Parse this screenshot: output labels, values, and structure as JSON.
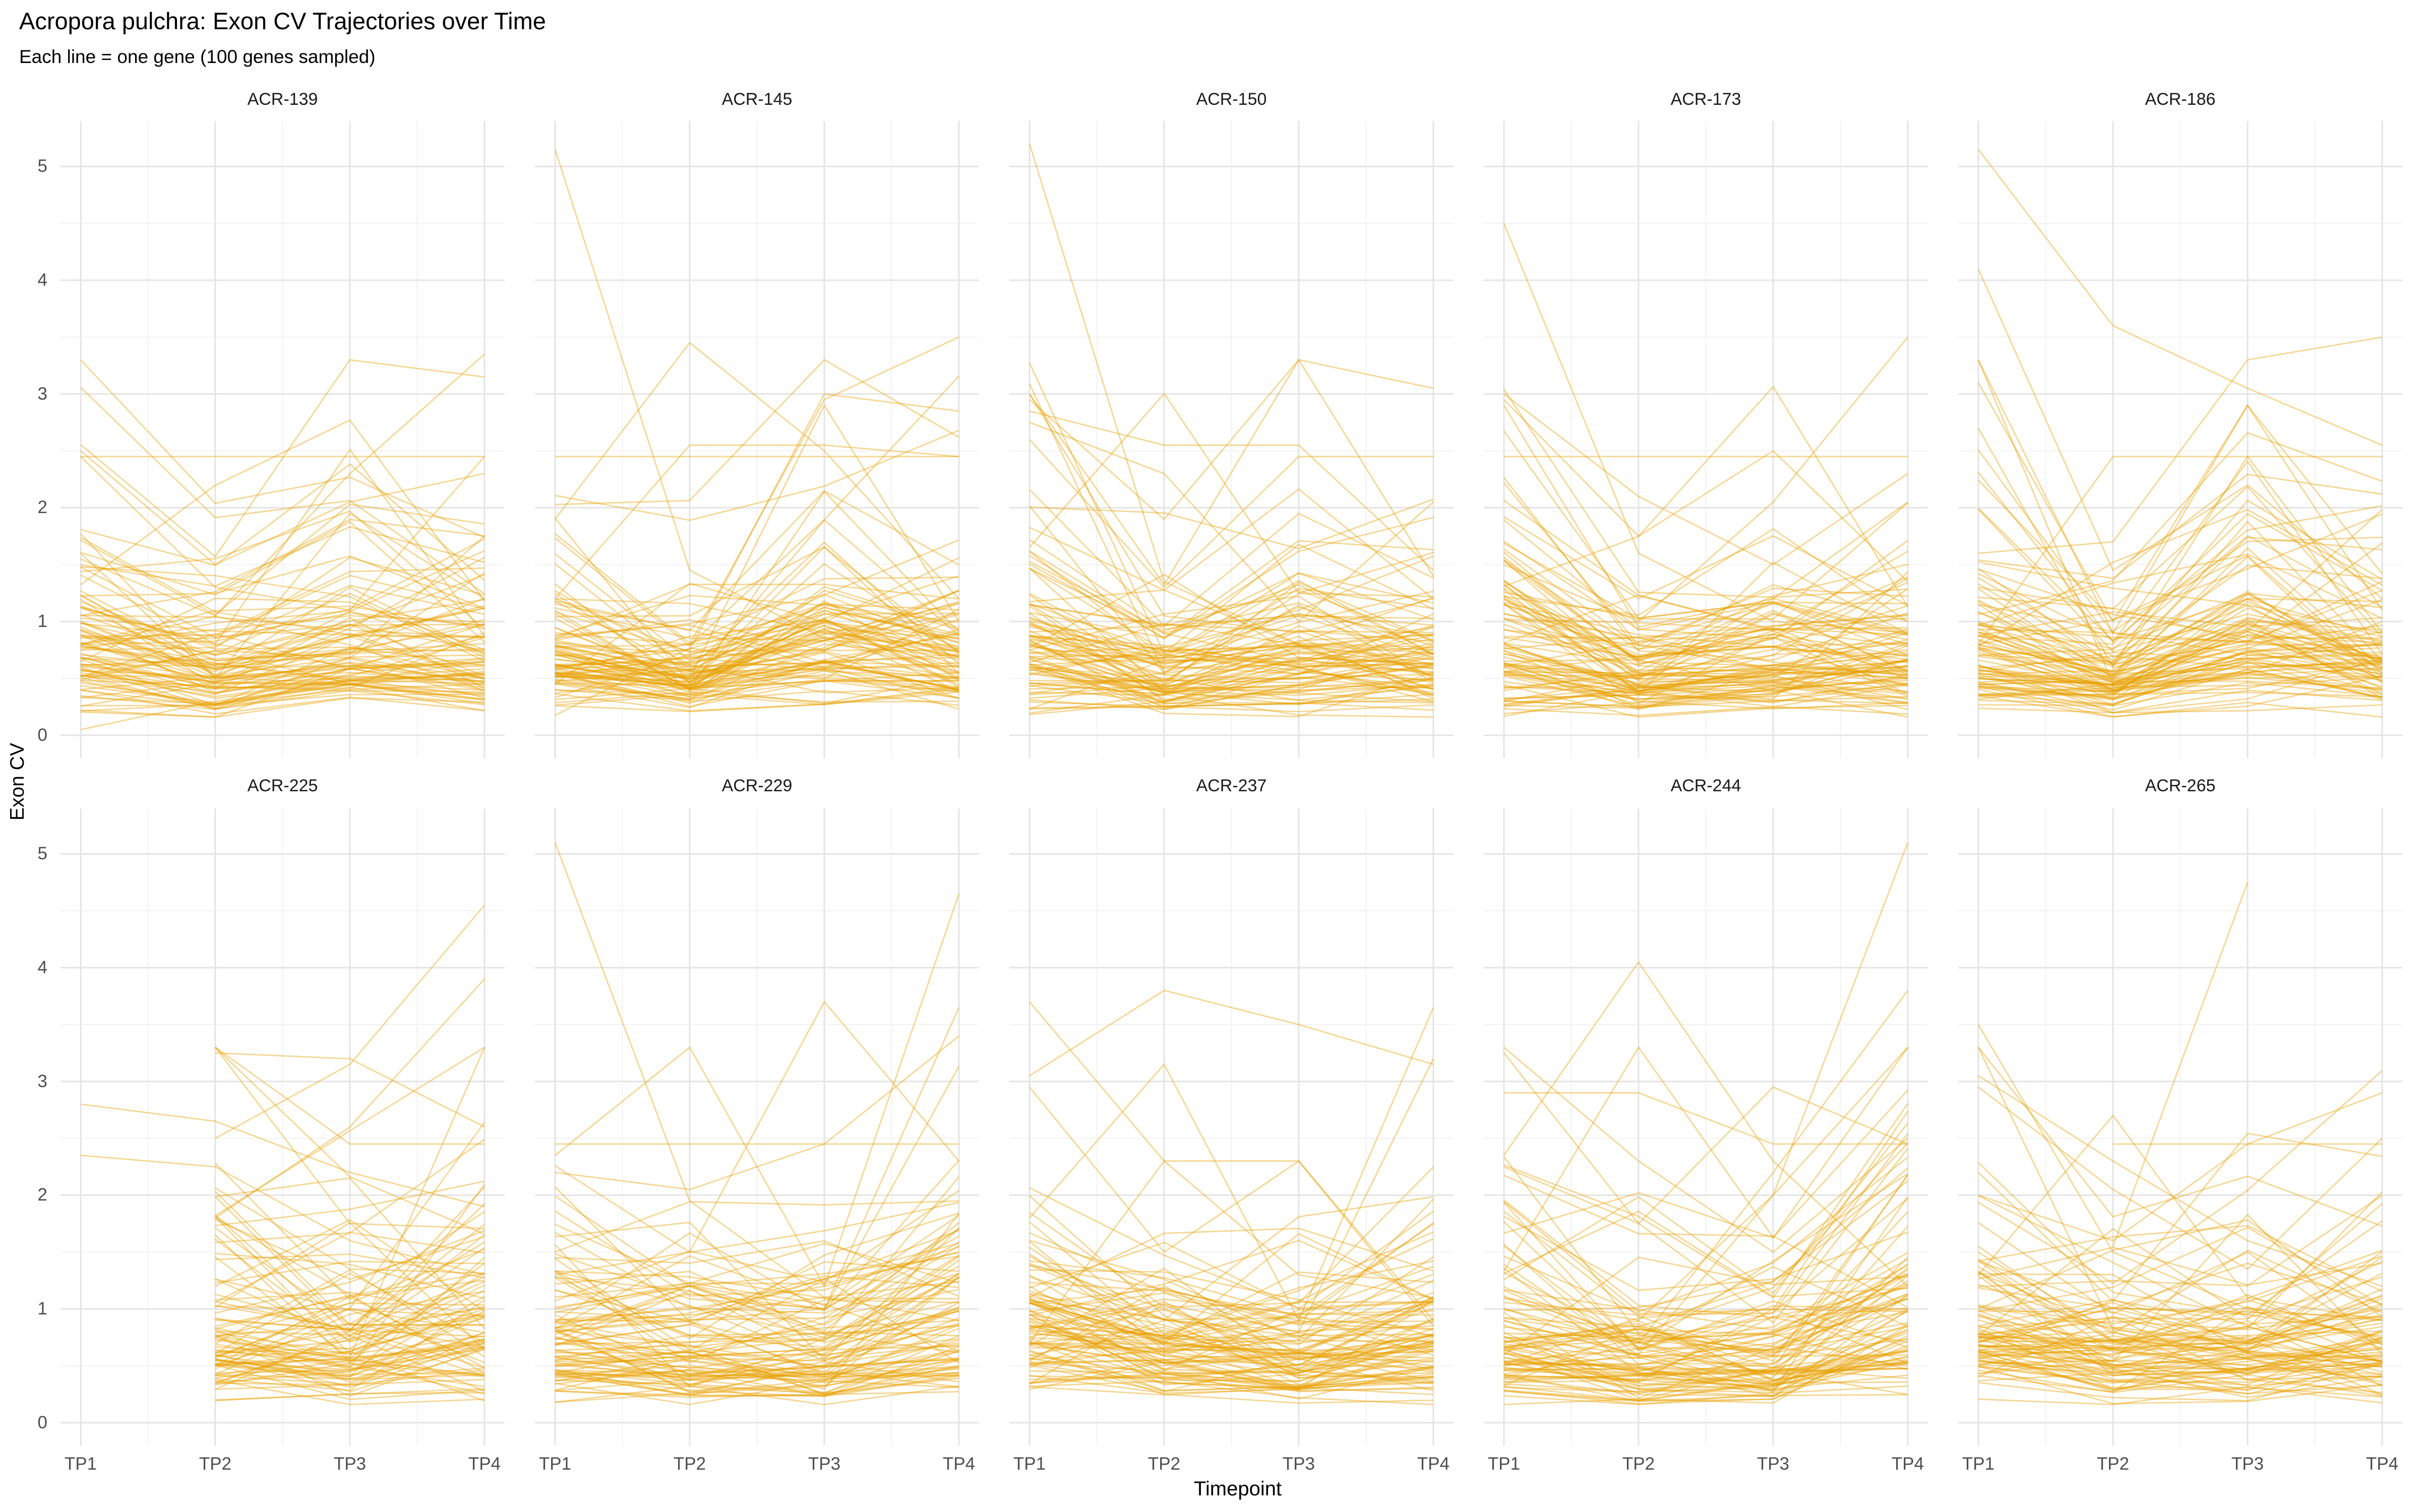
{
  "header": {
    "title": "Acropora pulchra: Exon CV Trajectories over Time",
    "subtitle": "Each line = one gene (100 genes sampled)"
  },
  "chart_data": {
    "type": "line",
    "description": "Faceted spaghetti plot: per-gene exon coefficient-of-variation trajectories across four timepoints, one panel per gene group, ~100 translucent amber lines per panel.",
    "xlabel": "Timepoint",
    "ylabel": "Exon CV",
    "genes_per_facet": 100,
    "axes": {
      "x_categories": [
        "TP1",
        "TP2",
        "TP3",
        "TP4"
      ],
      "x_positions": [
        1,
        2,
        3,
        4
      ],
      "x_minor": [
        1.5,
        2.5,
        3.5
      ],
      "x_range": [
        0.85,
        4.15
      ],
      "y_major": [
        0,
        1,
        2,
        3,
        4,
        5
      ],
      "y_tick_labels": [
        "0",
        "1",
        "2",
        "3",
        "4",
        "5"
      ],
      "y_minor": [
        0.5,
        1.5,
        2.5,
        3.5,
        4.5
      ],
      "y_range": [
        -0.2,
        5.4
      ],
      "grid": "major+minor, no axis ticks, no panel border",
      "legend": "none"
    },
    "style": {
      "line_color": "#E69F00",
      "line_opacity": 0.42,
      "line_width": 2.8,
      "grid_major_color": "#E4E4E4",
      "grid_minor_color": "#F1F1F1",
      "tick_text_color": "#4d4d4d",
      "strip_text_color": "#1a1a1a"
    },
    "bulk_distribution": {
      "note": "Bulk of ~100 lines per facet estimated from pixels: lognormal band around median ~0.7, per-timepoint shape multipliers and spreads below; explicit outlier trajectories listed per facet.",
      "gene_sigma": 0.45,
      "base_median": 0.7,
      "base_clip": [
        0.2,
        2.2
      ],
      "value_clip": [
        0.16,
        3.3
      ],
      "spike_prob": 0.05,
      "spike_mult": 1.9
    },
    "facets": [
      {
        "name": "ACR-139",
        "row": 0,
        "col": 0,
        "seed": 1139,
        "tp1_frac": 1,
        "shape": [
          1.0,
          0.8,
          1.02,
          0.95
        ],
        "sigma": [
          0.3,
          0.26,
          0.28,
          0.3
        ],
        "outliers": [
          [
            2.45,
            2.45,
            2.45,
            2.45
          ],
          [
            1.55,
            1.05,
            2.3,
            3.35
          ],
          [
            2.5,
            1.5,
            2.05,
            2.3
          ],
          [
            0.05,
            0.3,
            0.45,
            0.28
          ],
          [
            2.45,
            1.3,
            1.1,
            2.45
          ],
          [
            1.6,
            0.5,
            1.95,
            1.2
          ]
        ]
      },
      {
        "name": "ACR-145",
        "row": 0,
        "col": 1,
        "seed": 1145,
        "tp1_frac": 1,
        "shape": [
          1.0,
          0.8,
          1.3,
          1.05
        ],
        "sigma": [
          0.32,
          0.28,
          0.32,
          0.32
        ],
        "outliers": [
          [
            5.15,
            1.45,
            0.85,
            0.7
          ],
          [
            1.9,
            3.45,
            2.5,
            1.2
          ],
          [
            1.2,
            2.55,
            2.55,
            2.45
          ],
          [
            0.9,
            0.8,
            2.95,
            3.5
          ],
          [
            0.7,
            0.75,
            3.0,
            2.85
          ],
          [
            0.6,
            0.5,
            2.9,
            1.0
          ],
          [
            2.45,
            2.45,
            2.45,
            2.45
          ]
        ]
      },
      {
        "name": "ACR-150",
        "row": 0,
        "col": 2,
        "seed": 1150,
        "tp1_frac": 1,
        "shape": [
          1.22,
          0.8,
          0.95,
          0.92
        ],
        "sigma": [
          0.42,
          0.28,
          0.3,
          0.32
        ],
        "outliers": [
          [
            5.2,
            1.35,
            0.8,
            0.75
          ],
          [
            2.95,
            1.9,
            3.3,
            3.05
          ],
          [
            2.6,
            1.3,
            2.45,
            2.45
          ],
          [
            2.75,
            2.3,
            1.0,
            2.05
          ],
          [
            3.0,
            1.05,
            0.9,
            1.2
          ],
          [
            2.85,
            2.55,
            2.55,
            1.45
          ]
        ]
      },
      {
        "name": "ACR-173",
        "row": 0,
        "col": 3,
        "seed": 1173,
        "tp1_frac": 1,
        "shape": [
          1.18,
          0.8,
          0.95,
          1.0
        ],
        "sigma": [
          0.4,
          0.26,
          0.28,
          0.32
        ],
        "outliers": [
          [
            4.5,
            1.6,
            1.0,
            0.9
          ],
          [
            2.45,
            2.45,
            2.45,
            2.45
          ],
          [
            2.95,
            1.75,
            2.5,
            1.35
          ],
          [
            1.5,
            1.0,
            2.05,
            3.5
          ],
          [
            3.0,
            2.1,
            1.5,
            2.3
          ],
          [
            2.9,
            0.95,
            1.2,
            2.05
          ]
        ]
      },
      {
        "name": "ACR-186",
        "row": 0,
        "col": 4,
        "seed": 1186,
        "tp1_frac": 1,
        "shape": [
          1.08,
          0.75,
          1.35,
          0.95
        ],
        "sigma": [
          0.38,
          0.28,
          0.3,
          0.32
        ],
        "outliers": [
          [
            5.15,
            3.6,
            3.05,
            2.55
          ],
          [
            4.1,
            1.45,
            2.2,
            1.2
          ],
          [
            1.6,
            1.7,
            3.3,
            3.5
          ],
          [
            0.8,
            2.45,
            2.45,
            2.45
          ],
          [
            3.1,
            1.0,
            2.9,
            1.1
          ],
          [
            2.7,
            0.6,
            2.45,
            0.9
          ]
        ]
      },
      {
        "name": "ACR-225",
        "row": 1,
        "col": 0,
        "seed": 2225,
        "tp1_frac": 0,
        "shape": [
          1.0,
          1.0,
          0.92,
          1.12
        ],
        "sigma": [
          0.3,
          0.34,
          0.32,
          0.36
        ],
        "outliers": [
          [
            2.8,
            2.65,
            2.2,
            1.9
          ],
          [
            2.35,
            2.25,
            1.6,
            1.3
          ],
          [
            null,
            3.3,
            2.45,
            2.45
          ],
          [
            null,
            2.5,
            3.15,
            4.55
          ],
          [
            null,
            1.8,
            2.6,
            3.9
          ],
          [
            null,
            3.25,
            3.2,
            2.6
          ],
          [
            null,
            0.2,
            0.25,
            0.3
          ]
        ]
      },
      {
        "name": "ACR-229",
        "row": 1,
        "col": 1,
        "seed": 2229,
        "tp1_frac": 1,
        "shape": [
          1.0,
          0.95,
          0.85,
          1.28
        ],
        "sigma": [
          0.32,
          0.32,
          0.28,
          0.36
        ],
        "outliers": [
          [
            5.1,
            1.95,
            1.1,
            0.9
          ],
          [
            2.35,
            3.3,
            1.2,
            1.5
          ],
          [
            1.3,
            1.5,
            3.7,
            2.3
          ],
          [
            0.9,
            1.0,
            1.2,
            4.65
          ],
          [
            0.8,
            0.9,
            1.0,
            3.65
          ],
          [
            2.45,
            2.45,
            2.45,
            2.45
          ],
          [
            2.2,
            2.05,
            2.45,
            3.4
          ]
        ]
      },
      {
        "name": "ACR-237",
        "row": 1,
        "col": 2,
        "seed": 2237,
        "tp1_frac": 1,
        "shape": [
          1.1,
          1.0,
          0.78,
          1.08
        ],
        "sigma": [
          0.36,
          0.34,
          0.28,
          0.34
        ],
        "outliers": [
          [
            3.05,
            3.8,
            3.5,
            3.15
          ],
          [
            3.7,
            2.3,
            1.3,
            1.1
          ],
          [
            2.95,
            1.5,
            2.3,
            0.9
          ],
          [
            0.7,
            2.3,
            2.3,
            0.85
          ],
          [
            0.8,
            0.6,
            0.9,
            3.65
          ],
          [
            0.7,
            0.5,
            0.8,
            3.2
          ],
          [
            1.8,
            3.15,
            0.9,
            0.7
          ]
        ]
      },
      {
        "name": "ACR-244",
        "row": 1,
        "col": 3,
        "seed": 2244,
        "tp1_frac": 1,
        "shape": [
          1.1,
          0.85,
          0.85,
          1.3
        ],
        "sigma": [
          0.36,
          0.32,
          0.3,
          0.38
        ],
        "outliers": [
          [
            2.35,
            4.05,
            2.3,
            1.2
          ],
          [
            1.1,
            0.9,
            2.0,
            5.1
          ],
          [
            3.3,
            2.3,
            1.5,
            2.5
          ],
          [
            2.9,
            2.9,
            2.45,
            2.45
          ],
          [
            1.0,
            0.7,
            2.2,
            3.8
          ],
          [
            0.9,
            0.6,
            2.0,
            3.3
          ],
          [
            3.25,
            1.75,
            2.95,
            2.45
          ]
        ]
      },
      {
        "name": "ACR-265",
        "row": 1,
        "col": 4,
        "seed": 2265,
        "tp1_frac": 1,
        "shape": [
          1.08,
          0.8,
          0.95,
          1.0
        ],
        "sigma": [
          0.36,
          0.3,
          0.32,
          0.34
        ],
        "outliers": [
          [
            3.5,
            1.5,
            1.0,
            0.9
          ],
          [
            3.05,
            2.3,
            1.6,
            1.2
          ],
          [
            1.3,
            2.7,
            1.1,
            0.9
          ],
          [
            null,
            1.55,
            4.75,
            null
          ],
          [
            null,
            2.45,
            2.45,
            2.45
          ],
          [
            2.0,
            1.6,
            2.45,
            2.9
          ],
          [
            2.95,
            2.05,
            1.35,
            2.5
          ]
        ]
      }
    ]
  }
}
